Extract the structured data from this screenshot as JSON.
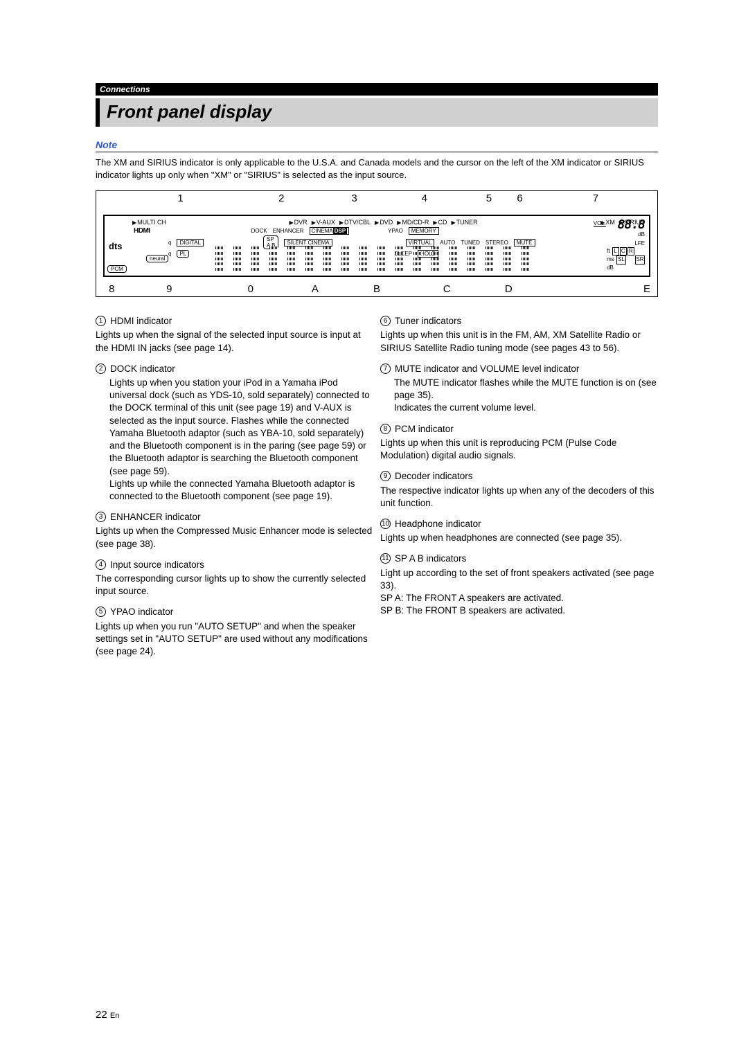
{
  "header": {
    "section": "Connections"
  },
  "title": "Front panel display",
  "note": {
    "label": "Note",
    "text": "The XM and SIRIUS indicator is only applicable to the U.S.A. and Canada models and the cursor on the left of the XM indicator or SIRIUS indicator lights up only when \"XM\" or \"SIRIUS\" is selected as the input source."
  },
  "diagram": {
    "top_labels": [
      "1",
      "2",
      "3",
      "4",
      "5",
      "6",
      "7"
    ],
    "bottom_labels": [
      "8",
      "9",
      "0",
      "A",
      "B",
      "C",
      "D",
      "E"
    ],
    "inputs": [
      "MULTI CH",
      "DVR",
      "V-AUX",
      "DTV/CBL",
      "DVD",
      "MD/CD-R",
      "CD",
      "TUNER",
      "XM",
      "SIRIUS"
    ],
    "row2_left": {
      "hdmi": "HDMI",
      "dock": "DOCK",
      "enh": "ENHANCER"
    },
    "badges": {
      "cinema": "CINEMA",
      "dsp": "DSP",
      "ypao": "YPAO",
      "memory": "MEMORY"
    },
    "row3": {
      "q": "q",
      "digital": "DIGITAL",
      "sp": "SP",
      "ab": "A B",
      "silent": "SILENT CINEMA",
      "virtual": "VIRTUAL",
      "auto": "AUTO",
      "tuned": "TUNED",
      "stereo": "STEREO",
      "mute": "MUTE"
    },
    "row4": {
      "pl": "PL",
      "sleep": "SLEEP",
      "hold": "HOLD"
    },
    "neural": "neural",
    "pcm": "PCM",
    "dts": "dts",
    "vol": "VOL.",
    "seg": "-88.8",
    "db": "dB",
    "lfe": "LFE",
    "ft": "ft",
    "ms": "ms",
    "speakers": {
      "L": "L",
      "C": "C",
      "R": "R",
      "SL": "SL",
      "SR": "SR"
    }
  },
  "left_items": [
    {
      "n": "1",
      "title": "HDMI indicator",
      "body": "Lights up when the signal of the selected input source is input at the HDMI IN jacks (see page 14)."
    },
    {
      "n": "2",
      "title": "DOCK indicator",
      "body": "Lights up when you station your iPod in a Yamaha iPod universal dock (such as YDS-10, sold separately) connected to the DOCK terminal of this unit (see page 19) and V-AUX is selected as the input source. Flashes while the connected Yamaha Bluetooth adaptor (such as YBA-10, sold separately) and the Bluetooth component is in the paring (see page 59) or the Bluetooth adaptor is searching the Bluetooth component (see page 59).\nLights up while the connected Yamaha Bluetooth adaptor is connected to the Bluetooth component (see page 19).",
      "indent": true
    },
    {
      "n": "3",
      "title": "ENHANCER indicator",
      "body": "Lights up when the Compressed Music Enhancer mode is selected (see page 38)."
    },
    {
      "n": "4",
      "title": "Input source indicators",
      "body": "The corresponding cursor lights up to show the currently selected input source."
    },
    {
      "n": "5",
      "title": "YPAO indicator",
      "body": "Lights up when you run \"AUTO SETUP\" and when the speaker settings set in \"AUTO SETUP\" are used without any modifications (see page 24)."
    }
  ],
  "right_items": [
    {
      "n": "6",
      "title": "Tuner indicators",
      "body": "Lights up when this unit is in the FM, AM, XM Satellite Radio or SIRIUS Satellite Radio tuning mode (see pages 43 to 56)."
    },
    {
      "n": "7",
      "title": "MUTE indicator and VOLUME level indicator",
      "body": "The MUTE indicator flashes while the MUTE function is on (see page 35).\nIndicates the current volume level.",
      "indent": true
    },
    {
      "n": "8",
      "title": "PCM indicator",
      "body": "Lights up when this unit is reproducing PCM (Pulse Code Modulation) digital audio signals."
    },
    {
      "n": "9",
      "title": "Decoder indicators",
      "body": "The respective indicator lights up when any of the decoders of this unit function."
    },
    {
      "n": "10",
      "title": "Headphone indicator",
      "body": "Lights up when headphones are connected (see page 35)."
    },
    {
      "n": "11",
      "title": "SP A B indicators",
      "body": "Light up according to the set of front speakers activated (see page 33).\nSP A: The FRONT A speakers are activated.\nSP B: The FRONT B speakers are activated."
    }
  ],
  "page_number": {
    "num": "22",
    "suffix": "En"
  }
}
